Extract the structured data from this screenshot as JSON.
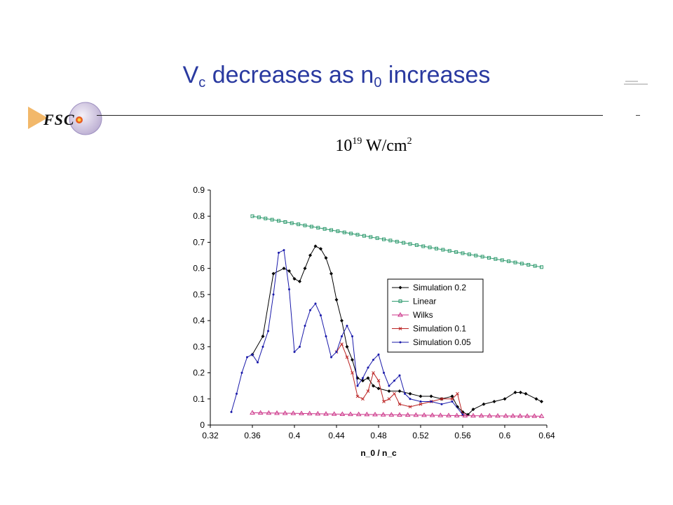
{
  "slide": {
    "title_main": "V",
    "title_sub": "c",
    "title_mid": " decreases as n",
    "title_sub2": "0",
    "title_end": " increases",
    "logo_text": "FSC",
    "intensity_base": "10",
    "intensity_exp": "19",
    "intensity_unit": " W/cm",
    "intensity_unit_exp": "2",
    "title_color": "#2a3aa0"
  },
  "chart_data": {
    "type": "line",
    "xlabel": "n_0 / n_c",
    "ylabel": "",
    "xlim": [
      0.32,
      0.64
    ],
    "ylim": [
      0,
      0.9
    ],
    "xticks": [
      "0.32",
      "0.36",
      "0.4",
      "0.44",
      "0.48",
      "0.52",
      "0.56",
      "0.6",
      "0.64"
    ],
    "yticks": [
      "0",
      "0.1",
      "0.2",
      "0.3",
      "0.4",
      "0.5",
      "0.6",
      "0.7",
      "0.8",
      "0.9"
    ],
    "legend_position": "right",
    "series": [
      {
        "name": "Simulation 0.2",
        "color": "#000000",
        "marker": "diamond",
        "x": [
          0.36,
          0.37,
          0.38,
          0.39,
          0.395,
          0.4,
          0.405,
          0.41,
          0.415,
          0.42,
          0.425,
          0.43,
          0.435,
          0.44,
          0.445,
          0.45,
          0.455,
          0.46,
          0.465,
          0.47,
          0.475,
          0.48,
          0.49,
          0.5,
          0.51,
          0.52,
          0.53,
          0.54,
          0.55,
          0.555,
          0.56,
          0.565,
          0.57,
          0.58,
          0.59,
          0.6,
          0.61,
          0.615,
          0.62,
          0.63,
          0.635
        ],
        "y": [
          0.27,
          0.34,
          0.58,
          0.6,
          0.59,
          0.56,
          0.55,
          0.6,
          0.65,
          0.685,
          0.675,
          0.64,
          0.58,
          0.48,
          0.4,
          0.3,
          0.25,
          0.18,
          0.17,
          0.18,
          0.15,
          0.14,
          0.13,
          0.13,
          0.12,
          0.11,
          0.11,
          0.1,
          0.11,
          0.07,
          0.05,
          0.04,
          0.06,
          0.08,
          0.09,
          0.1,
          0.125,
          0.125,
          0.12,
          0.1,
          0.09
        ]
      },
      {
        "name": "Linear",
        "color": "#2e9a6e",
        "marker": "square",
        "x": [
          0.36,
          0.635
        ],
        "y": [
          0.8,
          0.605
        ]
      },
      {
        "name": "Wilks",
        "color": "#cc3388",
        "marker": "triangle",
        "x": [
          0.36,
          0.4,
          0.44,
          0.48,
          0.52,
          0.56,
          0.6,
          0.635
        ],
        "y": [
          0.047,
          0.045,
          0.042,
          0.04,
          0.038,
          0.036,
          0.035,
          0.034
        ]
      },
      {
        "name": "Simulation 0.1",
        "color": "#bb2222",
        "marker": "x",
        "x": [
          0.44,
          0.445,
          0.45,
          0.455,
          0.46,
          0.465,
          0.47,
          0.475,
          0.48,
          0.485,
          0.49,
          0.495,
          0.5,
          0.51,
          0.52,
          0.53,
          0.54,
          0.55,
          0.555,
          0.56
        ],
        "y": [
          0.28,
          0.31,
          0.26,
          0.2,
          0.11,
          0.1,
          0.13,
          0.2,
          0.17,
          0.09,
          0.1,
          0.12,
          0.08,
          0.07,
          0.08,
          0.09,
          0.1,
          0.1,
          0.12,
          0.04
        ]
      },
      {
        "name": "Simulation 0.05",
        "color": "#1a1aaa",
        "marker": "dot",
        "x": [
          0.34,
          0.345,
          0.35,
          0.355,
          0.36,
          0.365,
          0.37,
          0.375,
          0.38,
          0.385,
          0.39,
          0.395,
          0.4,
          0.405,
          0.41,
          0.415,
          0.42,
          0.425,
          0.43,
          0.435,
          0.44,
          0.445,
          0.45,
          0.455,
          0.46,
          0.465,
          0.47,
          0.475,
          0.48,
          0.485,
          0.49,
          0.495,
          0.5,
          0.505,
          0.51,
          0.52,
          0.53,
          0.54,
          0.55,
          0.56
        ],
        "y": [
          0.05,
          0.12,
          0.2,
          0.26,
          0.27,
          0.24,
          0.3,
          0.36,
          0.5,
          0.66,
          0.67,
          0.52,
          0.28,
          0.3,
          0.38,
          0.44,
          0.465,
          0.42,
          0.34,
          0.26,
          0.28,
          0.34,
          0.38,
          0.34,
          0.15,
          0.18,
          0.22,
          0.25,
          0.27,
          0.2,
          0.15,
          0.17,
          0.19,
          0.12,
          0.1,
          0.09,
          0.09,
          0.08,
          0.09,
          0.04
        ]
      }
    ]
  }
}
